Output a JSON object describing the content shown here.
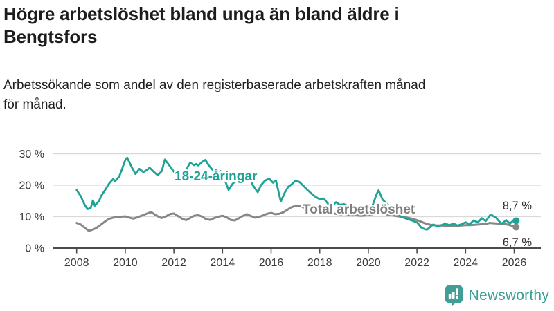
{
  "header": {
    "title": "Högre arbetslöshet bland unga än bland äldre i Bengtsfors",
    "title_lines": [
      "Högre arbetslöshet bland unga än bland äldre i",
      "Bengtsfors"
    ],
    "subtitle": "Arbetssökande som andel av den registerbaserade arbetskraften månad för månad.",
    "subtitle_lines": [
      "Arbetssökande som andel av den registerbaserade arbetskraften månad",
      "för månad."
    ]
  },
  "branding": {
    "name": "Newsworthy",
    "color": "#3F9E96",
    "icon": "bar-chart-speech-bubble-icon"
  },
  "chart_data": {
    "type": "line",
    "title": "Högre arbetslöshet bland unga än bland äldre i Bengtsfors",
    "subtitle": "Arbetssökande som andel av den registerbaserade arbetskraften månad för månad.",
    "unit": "%",
    "grid": true,
    "legend_position": "inline-labels",
    "x_axis": {
      "tick_values": [
        2008,
        2010,
        2012,
        2014,
        2016,
        2018,
        2020,
        2022,
        2024,
        2026
      ],
      "min": 2007.0,
      "max": 2027.1
    },
    "y_axis": {
      "tick_labels": [
        "0 %",
        "10 %",
        "20 %",
        "30 %"
      ],
      "tick_values": [
        0,
        10,
        20,
        30
      ],
      "min": 0,
      "max": 32
    },
    "series": [
      {
        "name": "Total arbetslöshet",
        "color": "#878787",
        "end_label": "6,7 %",
        "last_value": 6.7,
        "points": [
          [
            2008.0,
            8.0
          ],
          [
            2008.17,
            7.5
          ],
          [
            2008.33,
            6.5
          ],
          [
            2008.5,
            5.5
          ],
          [
            2008.67,
            5.9
          ],
          [
            2008.83,
            6.5
          ],
          [
            2009.0,
            7.5
          ],
          [
            2009.17,
            8.5
          ],
          [
            2009.33,
            9.3
          ],
          [
            2009.5,
            9.7
          ],
          [
            2009.67,
            9.9
          ],
          [
            2009.83,
            10.0
          ],
          [
            2010.0,
            10.1
          ],
          [
            2010.17,
            9.7
          ],
          [
            2010.33,
            9.4
          ],
          [
            2010.5,
            9.8
          ],
          [
            2010.67,
            10.3
          ],
          [
            2010.83,
            10.8
          ],
          [
            2011.0,
            11.3
          ],
          [
            2011.08,
            11.4
          ],
          [
            2011.25,
            10.5
          ],
          [
            2011.42,
            9.8
          ],
          [
            2011.5,
            9.6
          ],
          [
            2011.67,
            10.1
          ],
          [
            2011.83,
            10.8
          ],
          [
            2012.0,
            11.0
          ],
          [
            2012.17,
            10.2
          ],
          [
            2012.33,
            9.4
          ],
          [
            2012.5,
            8.9
          ],
          [
            2012.67,
            9.6
          ],
          [
            2012.83,
            10.3
          ],
          [
            2013.0,
            10.5
          ],
          [
            2013.17,
            10.0
          ],
          [
            2013.33,
            9.2
          ],
          [
            2013.5,
            9.0
          ],
          [
            2013.67,
            9.6
          ],
          [
            2013.83,
            10.0
          ],
          [
            2014.0,
            10.3
          ],
          [
            2014.17,
            9.8
          ],
          [
            2014.33,
            9.0
          ],
          [
            2014.5,
            8.8
          ],
          [
            2014.67,
            9.5
          ],
          [
            2014.83,
            10.2
          ],
          [
            2015.0,
            10.8
          ],
          [
            2015.17,
            10.2
          ],
          [
            2015.33,
            9.7
          ],
          [
            2015.5,
            9.9
          ],
          [
            2015.67,
            10.4
          ],
          [
            2015.83,
            10.9
          ],
          [
            2016.0,
            11.2
          ],
          [
            2016.17,
            10.8
          ],
          [
            2016.33,
            10.9
          ],
          [
            2016.5,
            11.4
          ],
          [
            2016.67,
            12.2
          ],
          [
            2016.83,
            13.0
          ],
          [
            2017.0,
            13.4
          ],
          [
            2017.17,
            13.5
          ],
          [
            2017.33,
            13.0
          ],
          [
            2017.5,
            12.4
          ],
          [
            2017.67,
            12.0
          ],
          [
            2017.83,
            11.7
          ],
          [
            2018.0,
            11.5
          ],
          [
            2018.17,
            11.2
          ],
          [
            2018.33,
            11.0
          ],
          [
            2018.5,
            11.1
          ],
          [
            2018.67,
            10.9
          ],
          [
            2018.83,
            10.7
          ],
          [
            2019.0,
            10.8
          ],
          [
            2019.17,
            10.6
          ],
          [
            2019.33,
            10.4
          ],
          [
            2019.5,
            10.5
          ],
          [
            2019.67,
            10.3
          ],
          [
            2019.83,
            10.4
          ],
          [
            2020.0,
            10.5
          ],
          [
            2020.17,
            10.7
          ],
          [
            2020.33,
            11.1
          ],
          [
            2020.5,
            11.2
          ],
          [
            2020.67,
            10.9
          ],
          [
            2020.83,
            10.6
          ],
          [
            2021.0,
            10.4
          ],
          [
            2021.17,
            10.2
          ],
          [
            2021.33,
            10.0
          ],
          [
            2021.5,
            9.9
          ],
          [
            2021.67,
            9.6
          ],
          [
            2021.83,
            9.3
          ],
          [
            2022.0,
            8.9
          ],
          [
            2022.17,
            8.4
          ],
          [
            2022.33,
            7.9
          ],
          [
            2022.5,
            7.5
          ],
          [
            2022.67,
            7.3
          ],
          [
            2022.83,
            7.2
          ],
          [
            2023.0,
            7.2
          ],
          [
            2023.17,
            7.1
          ],
          [
            2023.33,
            7.0
          ],
          [
            2023.5,
            7.1
          ],
          [
            2023.67,
            7.1
          ],
          [
            2023.83,
            7.2
          ],
          [
            2024.0,
            7.3
          ],
          [
            2024.17,
            7.3
          ],
          [
            2024.33,
            7.4
          ],
          [
            2024.5,
            7.5
          ],
          [
            2024.67,
            7.6
          ],
          [
            2024.83,
            7.7
          ],
          [
            2025.0,
            8.0
          ],
          [
            2025.17,
            7.9
          ],
          [
            2025.33,
            7.8
          ],
          [
            2025.5,
            7.7
          ],
          [
            2025.67,
            7.6
          ],
          [
            2025.83,
            7.3
          ],
          [
            2026.0,
            6.8
          ],
          [
            2026.08,
            6.7
          ]
        ]
      },
      {
        "name": "18-24-åringar",
        "color": "#1FA396",
        "end_label": "8,7 %",
        "last_value": 8.7,
        "points": [
          [
            2008.0,
            18.5
          ],
          [
            2008.17,
            16.5
          ],
          [
            2008.33,
            13.8
          ],
          [
            2008.45,
            12.4
          ],
          [
            2008.58,
            12.8
          ],
          [
            2008.67,
            15.2
          ],
          [
            2008.75,
            13.5
          ],
          [
            2008.92,
            15.0
          ],
          [
            2009.0,
            16.5
          ],
          [
            2009.17,
            18.5
          ],
          [
            2009.33,
            20.5
          ],
          [
            2009.5,
            22.0
          ],
          [
            2009.58,
            21.3
          ],
          [
            2009.75,
            22.8
          ],
          [
            2009.83,
            24.3
          ],
          [
            2009.92,
            26.3
          ],
          [
            2010.0,
            28.0
          ],
          [
            2010.08,
            28.8
          ],
          [
            2010.25,
            26.0
          ],
          [
            2010.42,
            23.6
          ],
          [
            2010.58,
            25.2
          ],
          [
            2010.75,
            24.2
          ],
          [
            2010.92,
            25.0
          ],
          [
            2011.0,
            25.6
          ],
          [
            2011.17,
            24.3
          ],
          [
            2011.33,
            23.2
          ],
          [
            2011.5,
            24.5
          ],
          [
            2011.63,
            28.2
          ],
          [
            2011.75,
            27.0
          ],
          [
            2011.92,
            25.2
          ],
          [
            2012.0,
            24.3
          ],
          [
            2012.17,
            22.5
          ],
          [
            2012.3,
            21.6
          ],
          [
            2012.42,
            23.5
          ],
          [
            2012.58,
            26.0
          ],
          [
            2012.67,
            27.2
          ],
          [
            2012.83,
            26.4
          ],
          [
            2012.92,
            26.8
          ],
          [
            2013.0,
            26.3
          ],
          [
            2013.17,
            27.5
          ],
          [
            2013.3,
            28.1
          ],
          [
            2013.42,
            26.5
          ],
          [
            2013.58,
            25.0
          ],
          [
            2013.75,
            24.0
          ],
          [
            2013.92,
            24.5
          ],
          [
            2014.0,
            23.5
          ],
          [
            2014.08,
            22.0
          ],
          [
            2014.25,
            18.5
          ],
          [
            2014.42,
            20.5
          ],
          [
            2014.58,
            21.5
          ],
          [
            2014.75,
            22.5
          ],
          [
            2014.92,
            22.0
          ],
          [
            2015.08,
            23.0
          ],
          [
            2015.25,
            20.0
          ],
          [
            2015.45,
            17.8
          ],
          [
            2015.58,
            20.0
          ],
          [
            2015.75,
            21.5
          ],
          [
            2015.92,
            22.1
          ],
          [
            2016.08,
            20.8
          ],
          [
            2016.2,
            21.5
          ],
          [
            2016.4,
            14.8
          ],
          [
            2016.55,
            17.5
          ],
          [
            2016.7,
            19.5
          ],
          [
            2016.85,
            20.3
          ],
          [
            2017.0,
            21.5
          ],
          [
            2017.17,
            21.0
          ],
          [
            2017.33,
            19.8
          ],
          [
            2017.5,
            18.5
          ],
          [
            2017.67,
            17.3
          ],
          [
            2017.83,
            16.3
          ],
          [
            2018.0,
            15.6
          ],
          [
            2018.17,
            15.8
          ],
          [
            2018.33,
            14.2
          ],
          [
            2018.5,
            13.4
          ],
          [
            2018.67,
            14.6
          ],
          [
            2018.83,
            13.8
          ],
          [
            2019.0,
            14.0
          ],
          [
            2019.17,
            13.4
          ],
          [
            2019.33,
            12.8
          ],
          [
            2019.5,
            13.1
          ],
          [
            2019.67,
            12.6
          ],
          [
            2019.83,
            12.4
          ],
          [
            2020.0,
            13.0
          ],
          [
            2020.17,
            13.5
          ],
          [
            2020.33,
            17.0
          ],
          [
            2020.42,
            18.4
          ],
          [
            2020.5,
            17.0
          ],
          [
            2020.58,
            15.5
          ],
          [
            2020.75,
            14.2
          ],
          [
            2020.92,
            13.0
          ],
          [
            2021.08,
            11.5
          ],
          [
            2021.25,
            10.4
          ],
          [
            2021.42,
            9.8
          ],
          [
            2021.58,
            9.3
          ],
          [
            2021.75,
            8.9
          ],
          [
            2021.92,
            8.4
          ],
          [
            2022.0,
            8.2
          ],
          [
            2022.08,
            7.5
          ],
          [
            2022.17,
            6.6
          ],
          [
            2022.33,
            6.0
          ],
          [
            2022.42,
            5.9
          ],
          [
            2022.58,
            7.0
          ],
          [
            2022.67,
            7.5
          ],
          [
            2022.83,
            7.0
          ],
          [
            2023.0,
            7.3
          ],
          [
            2023.17,
            7.8
          ],
          [
            2023.33,
            7.3
          ],
          [
            2023.5,
            7.8
          ],
          [
            2023.67,
            7.2
          ],
          [
            2023.83,
            7.6
          ],
          [
            2024.0,
            8.2
          ],
          [
            2024.17,
            7.6
          ],
          [
            2024.33,
            8.8
          ],
          [
            2024.5,
            8.2
          ],
          [
            2024.67,
            9.5
          ],
          [
            2024.83,
            8.6
          ],
          [
            2025.0,
            10.4
          ],
          [
            2025.08,
            10.5
          ],
          [
            2025.25,
            9.7
          ],
          [
            2025.42,
            8.2
          ],
          [
            2025.5,
            7.8
          ],
          [
            2025.67,
            8.9
          ],
          [
            2025.83,
            7.8
          ],
          [
            2026.0,
            9.1
          ],
          [
            2026.08,
            8.7
          ]
        ]
      }
    ],
    "colors": {
      "gridline": "#d9d9d9",
      "axis": "#4b4b4b",
      "axis_text": "#3a3a3a",
      "end_label_text": "#2e2e2e",
      "gray_series_label": "#7e7e7e"
    }
  }
}
